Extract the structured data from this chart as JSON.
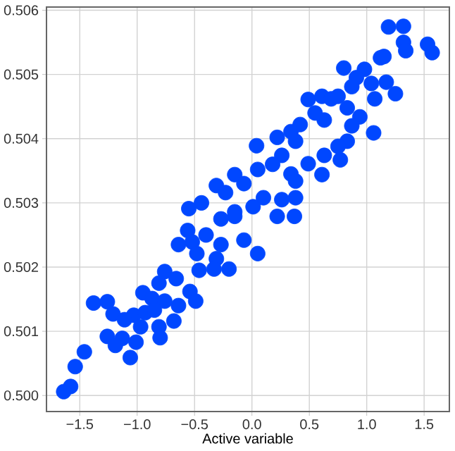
{
  "chart_data": {
    "type": "scatter",
    "xlabel": "Active variable",
    "xlim": [
      -1.79,
      1.72
    ],
    "ylim": [
      0.49975,
      0.50605
    ],
    "xticks": [
      {
        "value": -1.5,
        "label": "−1.5"
      },
      {
        "value": -1.0,
        "label": "−1.0"
      },
      {
        "value": -0.5,
        "label": "−0.5"
      },
      {
        "value": 0.0,
        "label": "0.0"
      },
      {
        "value": 0.5,
        "label": "0.5"
      },
      {
        "value": 1.0,
        "label": "1.0"
      },
      {
        "value": 1.5,
        "label": "1.5"
      }
    ],
    "yticks": [
      {
        "value": 0.5,
        "label": "0.500"
      },
      0.501,
      0.502,
      0.503,
      0.504,
      0.505,
      0.506
    ],
    "grid": true,
    "marker": "circle",
    "series": [
      {
        "color": "#0047ff",
        "x": [
          1.19,
          1.32,
          1.32,
          1.34,
          1.53,
          1.57,
          1.12,
          1.15,
          0.8,
          0.98,
          0.91,
          0.87,
          1.04,
          1.17,
          1.25,
          1.07,
          0.49,
          0.61,
          0.69,
          0.75,
          0.83,
          0.94,
          0.87,
          1.06,
          0.83,
          0.75,
          0.63,
          0.55,
          0.42,
          0.34,
          0.38,
          0.22,
          0.04,
          0.63,
          0.49,
          0.61,
          0.77,
          0.26,
          0.18,
          0.34,
          0.38,
          0.38,
          0.26,
          0.22,
          0.37,
          -0.15,
          -0.31,
          -0.44,
          -0.55,
          -0.07,
          0.05,
          0.1,
          0.01,
          -0.23,
          -0.15,
          -0.15,
          -0.27,
          -0.56,
          -0.52,
          -0.64,
          -0.4,
          -0.27,
          -0.07,
          0.05,
          -0.48,
          -0.31,
          -0.2,
          -0.46,
          -0.33,
          -0.76,
          -0.66,
          -0.81,
          -0.54,
          -0.49,
          -0.64,
          -0.95,
          -0.87,
          -0.76,
          -1.38,
          -1.26,
          -1.21,
          -1.03,
          -1.11,
          -0.93,
          -0.85,
          -0.68,
          -0.97,
          -0.81,
          -1.26,
          -1.13,
          -1.19,
          -1.01,
          -0.8,
          -1.06,
          -1.46,
          -1.54,
          -1.58,
          -1.64
        ],
        "values": [
          0.50574,
          0.50575,
          0.5055,
          0.50537,
          0.50547,
          0.50534,
          0.50526,
          0.50528,
          0.5051,
          0.50508,
          0.50495,
          0.50481,
          0.50486,
          0.50488,
          0.5047,
          0.50462,
          0.50461,
          0.50466,
          0.50462,
          0.50466,
          0.50448,
          0.50434,
          0.5042,
          0.50409,
          0.50396,
          0.50388,
          0.50429,
          0.5044,
          0.50422,
          0.50411,
          0.50396,
          0.50402,
          0.50389,
          0.50374,
          0.50361,
          0.50344,
          0.50367,
          0.50374,
          0.5036,
          0.50345,
          0.50334,
          0.50308,
          0.50305,
          0.50279,
          0.50279,
          0.50344,
          0.50327,
          0.503,
          0.50291,
          0.5033,
          0.50352,
          0.50308,
          0.50294,
          0.50316,
          0.50286,
          0.50279,
          0.50275,
          0.50257,
          0.50239,
          0.50235,
          0.5025,
          0.50235,
          0.50242,
          0.50221,
          0.50221,
          0.50213,
          0.50197,
          0.50195,
          0.50197,
          0.50193,
          0.50182,
          0.50175,
          0.50162,
          0.50147,
          0.5014,
          0.5016,
          0.50151,
          0.50147,
          0.50144,
          0.50146,
          0.50127,
          0.50125,
          0.50118,
          0.50129,
          0.50133,
          0.50116,
          0.50107,
          0.50107,
          0.50092,
          0.50089,
          0.50078,
          0.50083,
          0.5009,
          0.50059,
          0.50068,
          0.50045,
          0.50014,
          0.50006
        ]
      }
    ]
  }
}
